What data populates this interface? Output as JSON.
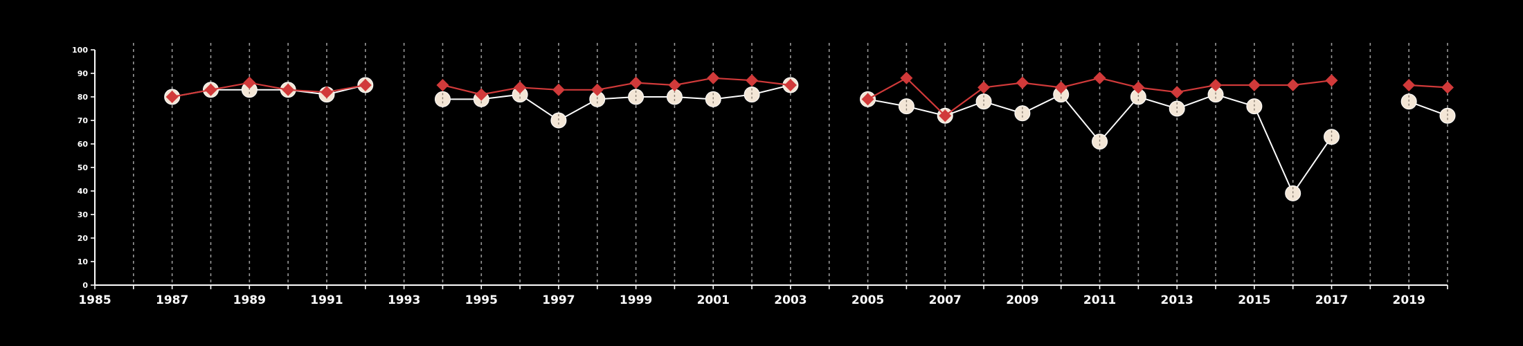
{
  "chart_data": {
    "type": "line",
    "title": "",
    "xlabel": "",
    "ylabel": "",
    "xlim": [
      1985,
      2020
    ],
    "ylim": [
      0,
      100
    ],
    "x_ticks": [
      1985,
      1987,
      1989,
      1991,
      1993,
      1995,
      1997,
      1999,
      2001,
      2003,
      2005,
      2007,
      2009,
      2011,
      2013,
      2015,
      2017,
      2019
    ],
    "y_ticks": [
      0,
      10,
      20,
      30,
      40,
      50,
      60,
      70,
      80,
      90,
      100
    ],
    "vertical_gridlines": "dashed, one per year",
    "colors": {
      "background": "#000000",
      "axis": "#ffffff",
      "grid": "#9a9a9a",
      "series_white_line": "#ffffff",
      "series_white_marker": "#f3e6d6",
      "series_red": "#d13a3a"
    },
    "series": [
      {
        "marker": "circle",
        "color": "#f3e6d6",
        "points": [
          [
            1987,
            80
          ],
          [
            1988,
            83
          ],
          [
            1989,
            83
          ],
          [
            1990,
            83
          ],
          [
            1991,
            81
          ],
          [
            1992,
            85
          ],
          [
            1994,
            79
          ],
          [
            1995,
            79
          ],
          [
            1996,
            81
          ],
          [
            1997,
            70
          ],
          [
            1998,
            79
          ],
          [
            1999,
            80
          ],
          [
            2000,
            80
          ],
          [
            2001,
            79
          ],
          [
            2002,
            81
          ],
          [
            2003,
            85
          ],
          [
            2005,
            79
          ],
          [
            2006,
            76
          ],
          [
            2007,
            72
          ],
          [
            2008,
            78
          ],
          [
            2009,
            73
          ],
          [
            2010,
            81
          ],
          [
            2011,
            61
          ],
          [
            2012,
            80
          ],
          [
            2013,
            75
          ],
          [
            2014,
            81
          ],
          [
            2015,
            76
          ],
          [
            2016,
            39
          ],
          [
            2017,
            63
          ],
          [
            2019,
            78
          ],
          [
            2020,
            72
          ]
        ]
      },
      {
        "marker": "diamond",
        "color": "#d13a3a",
        "points": [
          [
            1987,
            80
          ],
          [
            1988,
            83
          ],
          [
            1989,
            86
          ],
          [
            1990,
            83
          ],
          [
            1991,
            82
          ],
          [
            1992,
            85
          ],
          [
            1994,
            85
          ],
          [
            1995,
            81
          ],
          [
            1996,
            84
          ],
          [
            1997,
            83
          ],
          [
            1998,
            83
          ],
          [
            1999,
            86
          ],
          [
            2000,
            85
          ],
          [
            2001,
            88
          ],
          [
            2002,
            87
          ],
          [
            2003,
            85
          ],
          [
            2005,
            79
          ],
          [
            2006,
            88
          ],
          [
            2007,
            72
          ],
          [
            2008,
            84
          ],
          [
            2009,
            86
          ],
          [
            2010,
            84
          ],
          [
            2011,
            88
          ],
          [
            2012,
            84
          ],
          [
            2013,
            82
          ],
          [
            2014,
            85
          ],
          [
            2015,
            85
          ],
          [
            2016,
            85
          ],
          [
            2017,
            87
          ],
          [
            2019,
            85
          ],
          [
            2020,
            84
          ]
        ]
      }
    ]
  }
}
